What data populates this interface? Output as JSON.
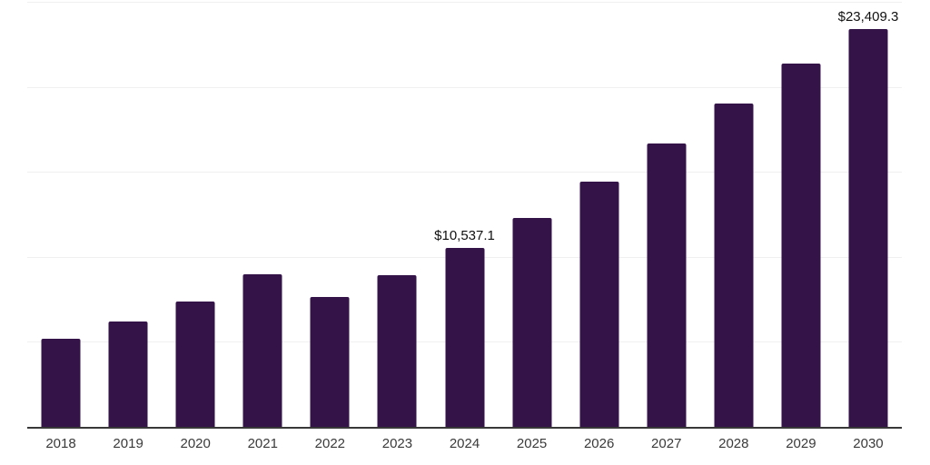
{
  "page": {
    "background_color": "#ffffff"
  },
  "chart_data": {
    "type": "bar",
    "title": "",
    "xlabel": "",
    "ylabel": "",
    "categories": [
      "2018",
      "2019",
      "2020",
      "2021",
      "2022",
      "2023",
      "2024",
      "2025",
      "2026",
      "2027",
      "2028",
      "2029",
      "2030"
    ],
    "values": [
      5155.9,
      6218.6,
      7388.9,
      8982.4,
      7654.1,
      8929.2,
      10537.1,
      12277.7,
      14403.7,
      16689.1,
      19027.7,
      21366.3,
      23409.3
    ],
    "data_labels": [
      "",
      "",
      "",
      "",
      "",
      "",
      "$10,537.1",
      "",
      "",
      "",
      "",
      "",
      "$23,409.3"
    ],
    "ylim": [
      0,
      25000
    ],
    "gridline_step": 5000,
    "grid": "horizontal-only",
    "y_axis_tick_labels": "none",
    "legend_position": "none",
    "bar_color": "#341349",
    "gridline_color": "#f0f0f0",
    "axis_line_color": "#383838",
    "tick_label_color": "#3a3a3a",
    "data_label_color": "#111111"
  }
}
